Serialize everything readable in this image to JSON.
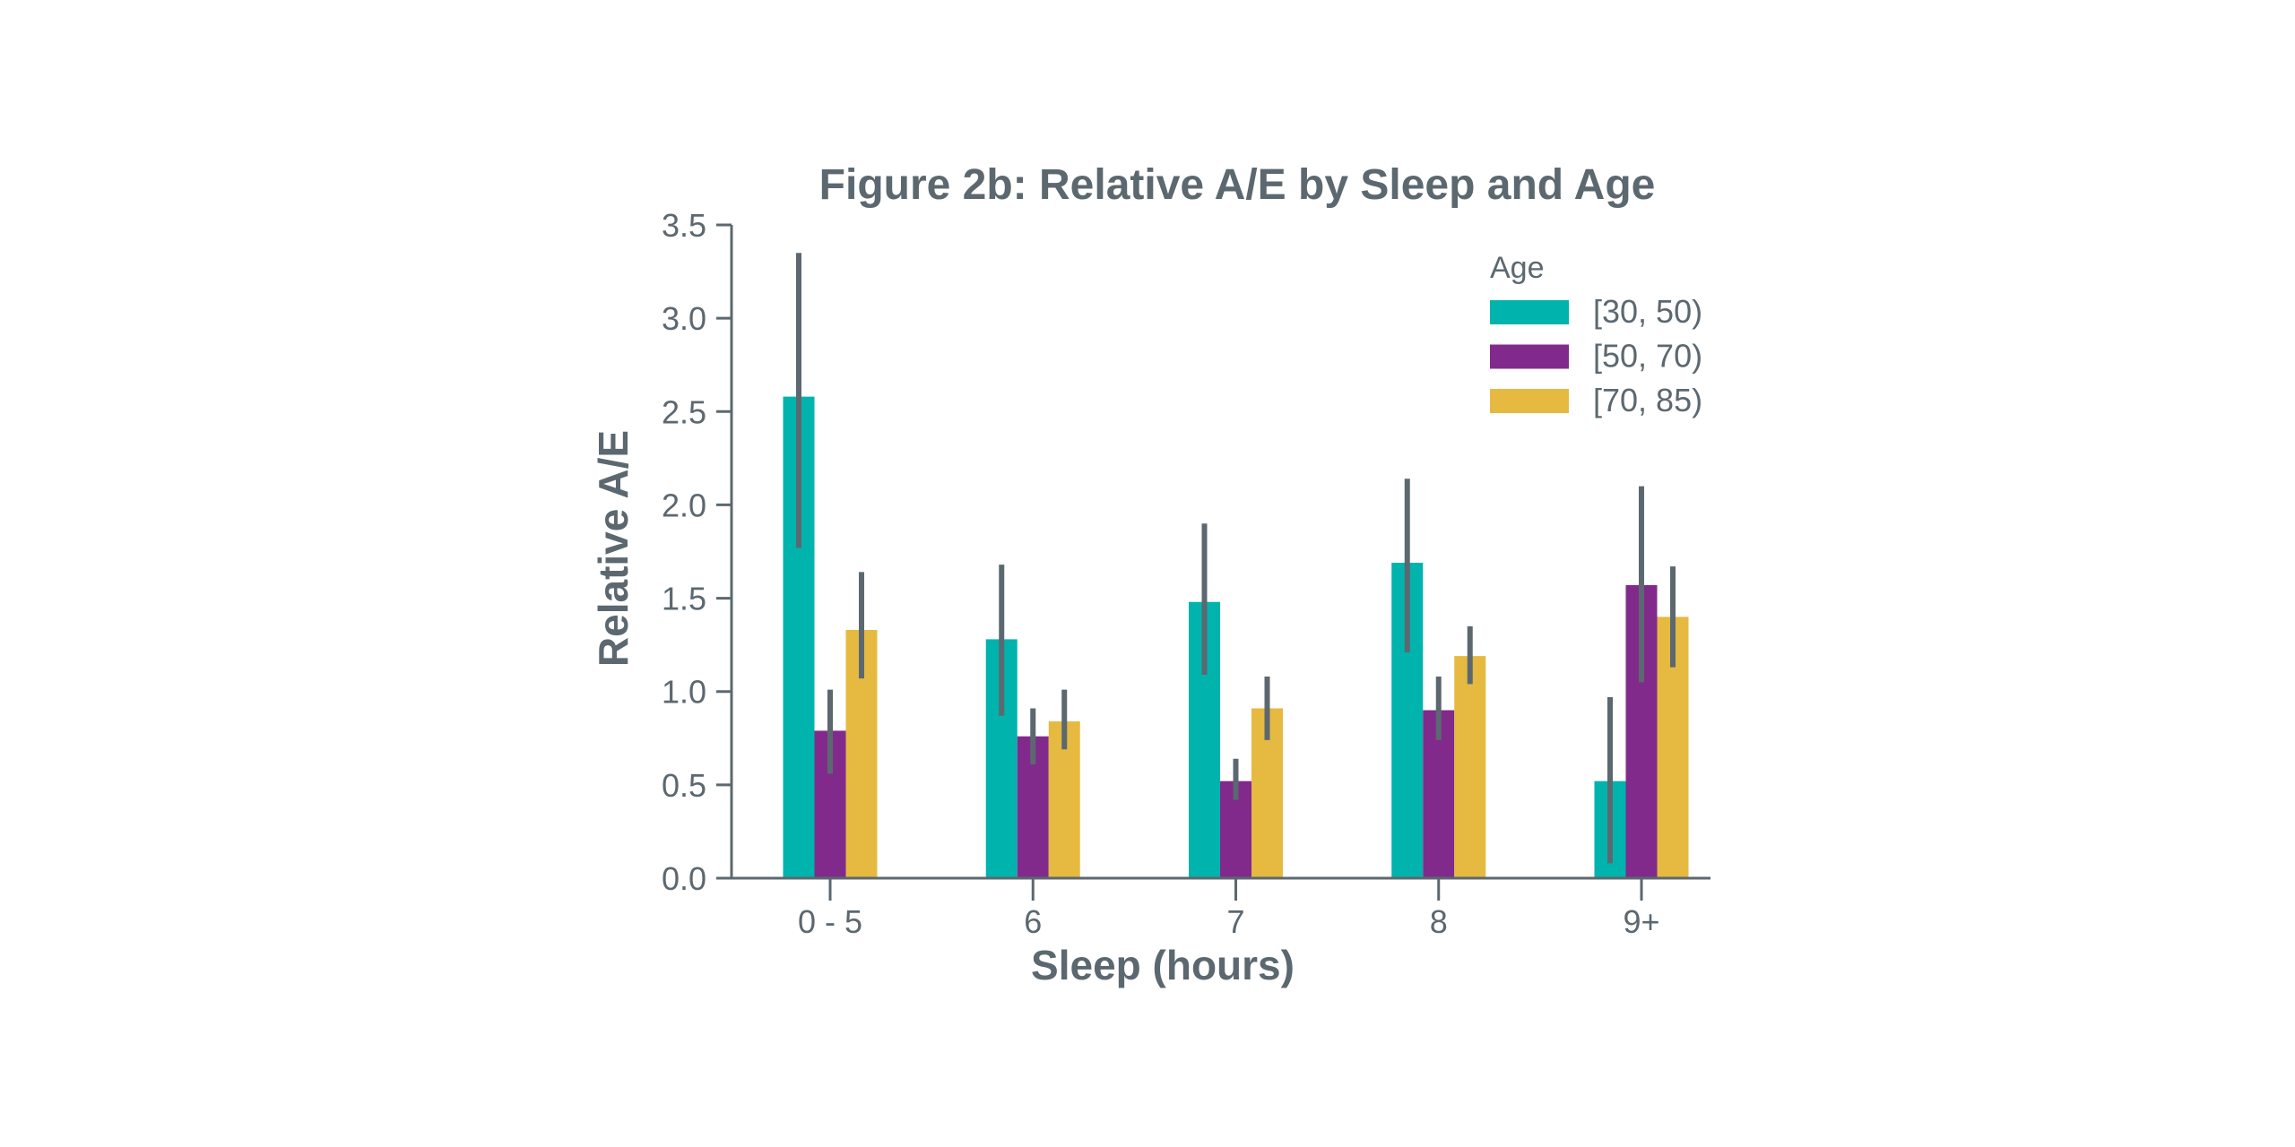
{
  "chart_data": {
    "type": "bar",
    "title": "Figure 2b: Relative A/E by Sleep and Age",
    "xlabel": "Sleep (hours)",
    "ylabel": "Relative A/E",
    "ylim": [
      0,
      3.5
    ],
    "yticks": [
      "0.0",
      "0.5",
      "1.0",
      "1.5",
      "2.0",
      "2.5",
      "3.0",
      "3.5"
    ],
    "ytick_values": [
      0,
      0.5,
      1.0,
      1.5,
      2.0,
      2.5,
      3.0,
      3.5
    ],
    "categories": [
      "0 - 5",
      "6",
      "7",
      "8",
      "9+"
    ],
    "grid": false,
    "legend": {
      "title": "Age",
      "position": "top-right"
    },
    "series": [
      {
        "name": "[30, 50)",
        "color": "#00b3ad",
        "values": [
          2.58,
          1.28,
          1.48,
          1.69,
          0.52
        ],
        "error_low": [
          1.77,
          0.87,
          1.09,
          1.21,
          0.08
        ],
        "error_high": [
          3.35,
          1.68,
          1.9,
          2.14,
          0.97
        ]
      },
      {
        "name": "[50, 70)",
        "color": "#812a8c",
        "values": [
          0.79,
          0.76,
          0.52,
          0.9,
          1.57
        ],
        "error_low": [
          0.56,
          0.61,
          0.42,
          0.74,
          1.05
        ],
        "error_high": [
          1.01,
          0.91,
          0.64,
          1.08,
          2.1
        ]
      },
      {
        "name": "[70, 85)",
        "color": "#e6b940",
        "values": [
          1.33,
          0.84,
          0.91,
          1.19,
          1.4
        ],
        "error_low": [
          1.07,
          0.69,
          0.74,
          1.04,
          1.13
        ],
        "error_high": [
          1.64,
          1.01,
          1.08,
          1.35,
          1.67
        ]
      }
    ],
    "error_bar_color": "#5c6870",
    "text_color": "#5c6870"
  }
}
